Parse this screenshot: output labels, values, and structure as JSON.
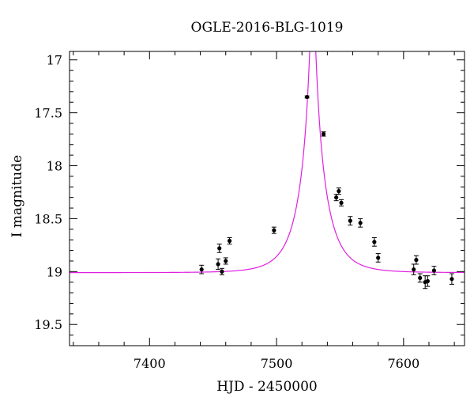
{
  "chart_data": {
    "type": "scatter",
    "title": "OGLE-2016-BLG-1019",
    "xlabel": "HJD - 2450000",
    "ylabel": "I magnitude",
    "xlim": [
      7337,
      7648
    ],
    "ylim": [
      19.7,
      16.92
    ],
    "y_inverted": true,
    "x_ticks": [
      7400,
      7500,
      7600
    ],
    "x_tick_labels": [
      "7400",
      "7500",
      "7600"
    ],
    "y_ticks": [
      17,
      17.5,
      18,
      18.5,
      19,
      19.5
    ],
    "y_tick_labels": [
      "17",
      "17.5",
      "18",
      "18.5",
      "19",
      "19.5"
    ],
    "grid": false,
    "legend": "none",
    "colors": {
      "model": "#e020e0",
      "points": "#000000",
      "axes": "#000000"
    },
    "series": [
      {
        "type": "scatter_errorbar",
        "x": [
          7441,
          7454,
          7455,
          7457,
          7460,
          7463,
          7498,
          7524,
          7537,
          7547,
          7549,
          7551,
          7558,
          7566,
          7577,
          7580,
          7608,
          7610,
          7613,
          7617,
          7619,
          7624,
          7638
        ],
        "y": [
          18.98,
          18.93,
          18.78,
          19.0,
          18.9,
          18.71,
          18.61,
          17.35,
          17.7,
          18.3,
          18.24,
          18.35,
          18.52,
          18.54,
          18.72,
          18.87,
          18.98,
          18.89,
          19.06,
          19.1,
          19.09,
          18.99,
          19.07
        ],
        "yerr": [
          0.04,
          0.05,
          0.04,
          0.03,
          0.03,
          0.03,
          0.03,
          0.01,
          0.02,
          0.03,
          0.03,
          0.03,
          0.04,
          0.04,
          0.04,
          0.04,
          0.05,
          0.04,
          0.04,
          0.06,
          0.05,
          0.04,
          0.05
        ]
      },
      {
        "type": "line",
        "model": {
          "baseline": 19.01,
          "t0": 7528.5,
          "u0": 0.085,
          "tE": 20
        }
      }
    ]
  }
}
